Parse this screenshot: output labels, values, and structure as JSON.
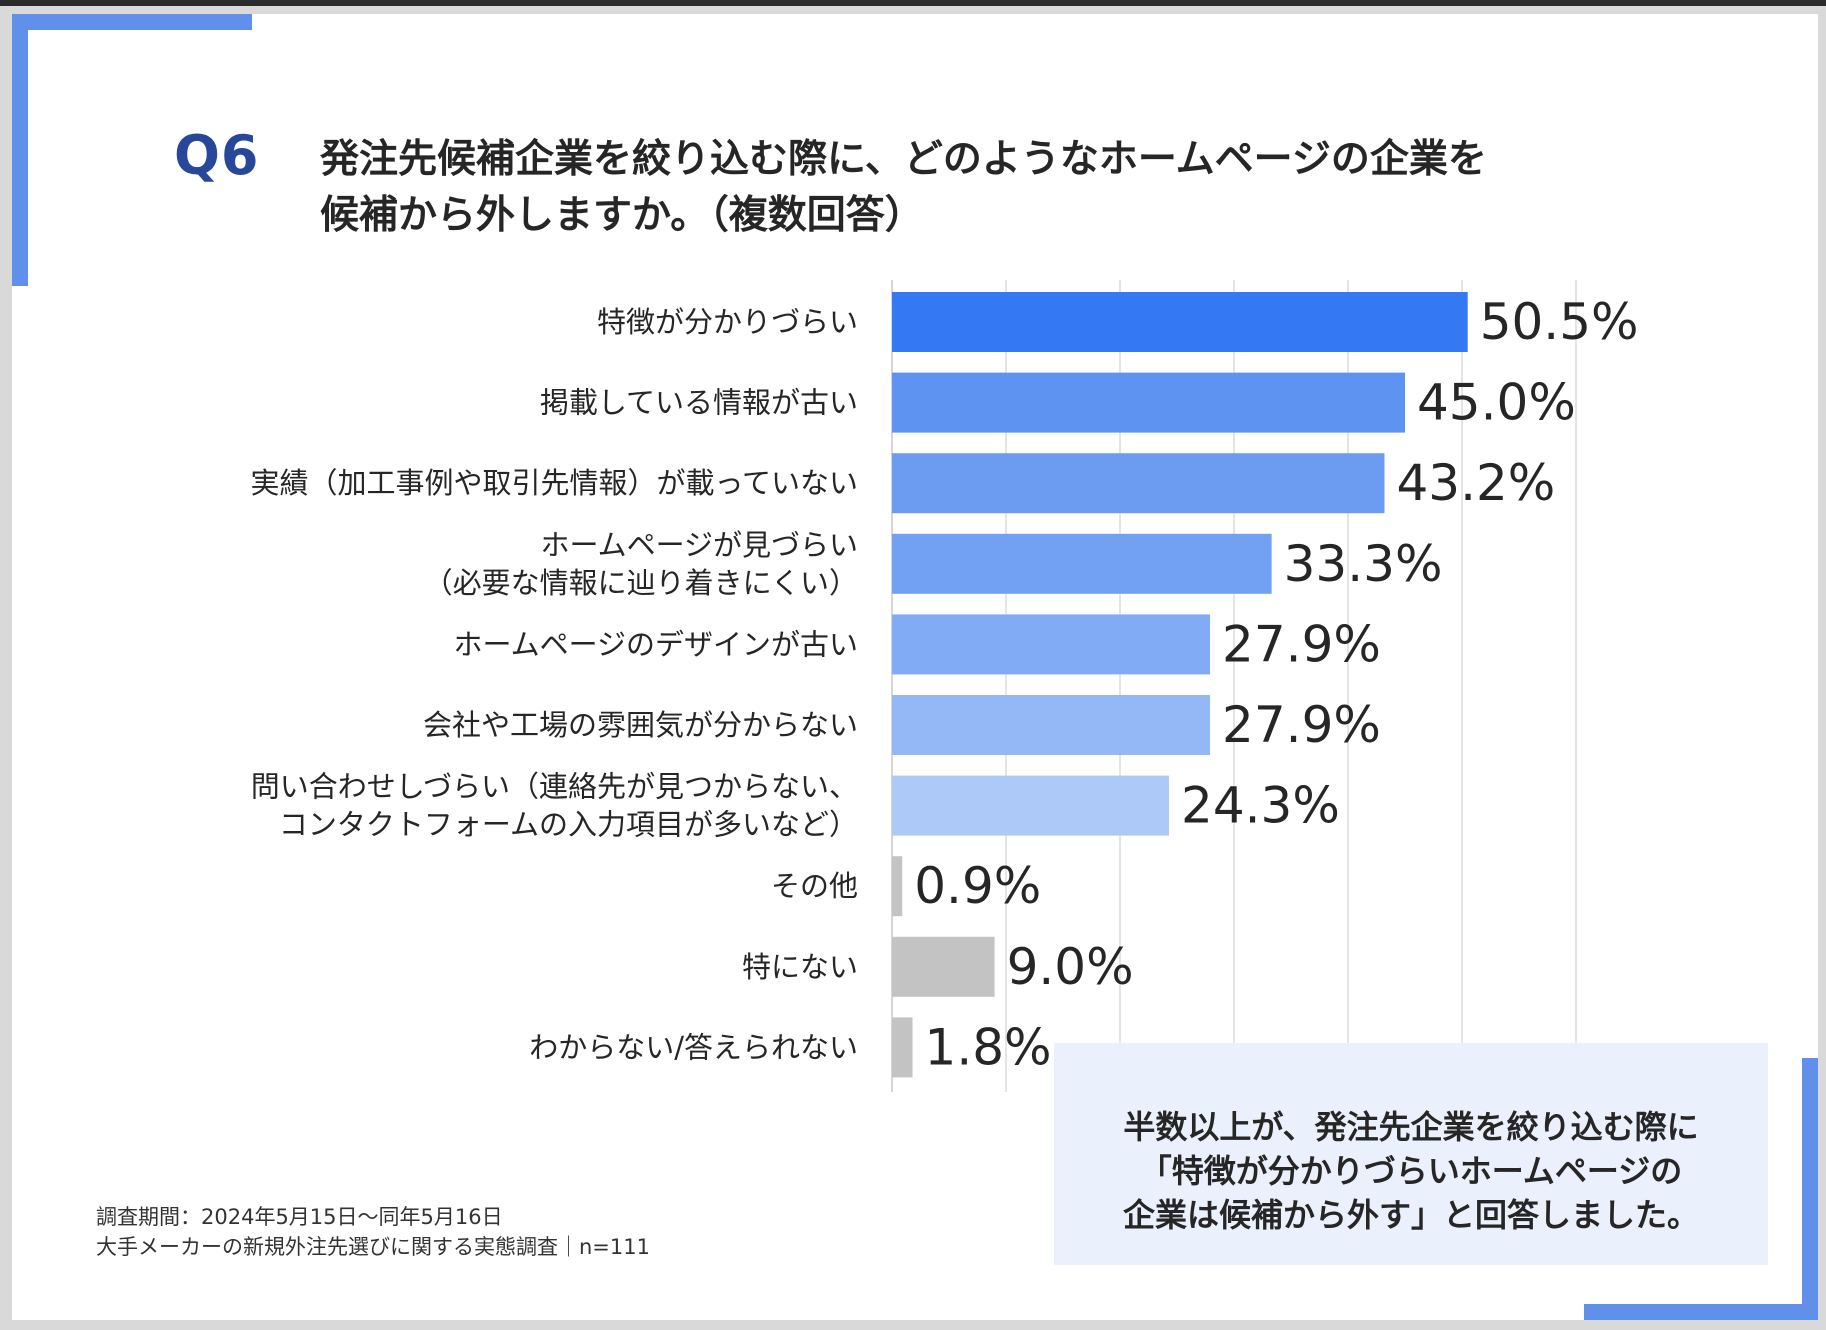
{
  "question": {
    "number": "Q6",
    "lines": [
      "発注先候補企業を絞り込む際に、どのようなホームページの企業を",
      "候補から外しますか。（複数回答）"
    ]
  },
  "chart_data": {
    "type": "bar",
    "orientation": "horizontal",
    "unit": "%",
    "xlim": [
      0,
      60
    ],
    "grid": true,
    "categories": [
      [
        "特徴が分かりづらい"
      ],
      [
        "掲載している情報が古い"
      ],
      [
        "実績（加工事例や取引先情報）が載っていない"
      ],
      [
        "ホームページが見づらい",
        "（必要な情報に辿り着きにくい）"
      ],
      [
        "ホームページのデザインが古い"
      ],
      [
        "会社や工場の雰囲気が分からない"
      ],
      [
        "問い合わせしづらい（連絡先が見つからない、",
        "コンタクトフォームの入力項目が多いなど）"
      ],
      [
        "その他"
      ],
      [
        "特にない"
      ],
      [
        "わからない/答えられない"
      ]
    ],
    "values": [
      50.5,
      45.0,
      43.2,
      33.3,
      27.9,
      27.9,
      24.3,
      0.9,
      9.0,
      1.8
    ],
    "value_labels": [
      "50.5%",
      "45.0%",
      "43.2%",
      "33.3%",
      "27.9%",
      "27.9%",
      "24.3%",
      "0.9%",
      "9.0%",
      "1.8%"
    ],
    "colors": [
      "#3478f4",
      "#5e93f2",
      "#6c9cf2",
      "#72a0f3",
      "#81abf4",
      "#94b8f6",
      "#adc9f8",
      "#c3c3c3",
      "#c3c3c3",
      "#c3c3c3"
    ]
  },
  "note": {
    "lines": [
      "半数以上が、発注先企業を絞り込む際に",
      "「特徴が分かりづらいホームページの",
      "企業は候補から外す」と回答しました。"
    ]
  },
  "footer": {
    "period": "調査期間：2024年5月15日～同年5月16日",
    "survey": "大手メーカーの新規外注先選びに関する実態調査｜n=111"
  }
}
